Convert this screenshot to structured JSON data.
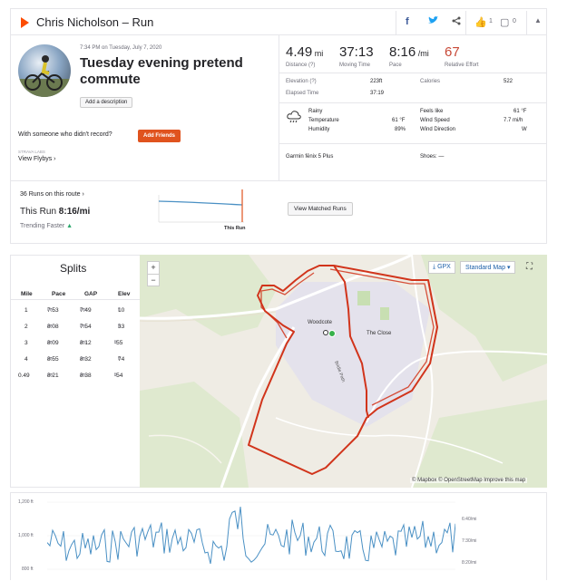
{
  "header": {
    "title": "Chris Nicholson – Run",
    "kudos_count": "1",
    "comments_count": "0"
  },
  "activity": {
    "timestamp": "7:34 PM on Tuesday, July 7, 2020",
    "title": "Tuesday evening pretend commute",
    "add_description": "Add a description",
    "with_someone": "With someone who didn't record?",
    "add_friends": "Add Friends",
    "strava_labs": "STRAVA LABS",
    "view_flybys": "View Flybys"
  },
  "stats": {
    "distance": "4.49",
    "distance_unit": "mi",
    "distance_label": "Distance (?)",
    "moving_time": "37:13",
    "moving_time_label": "Moving Time",
    "pace": "8:16",
    "pace_unit": "/mi",
    "pace_label": "Pace",
    "relative_effort": "67",
    "relative_effort_label": "Relative Effort",
    "elevation_label": "Elevation (?)",
    "elevation": "223ft",
    "calories_label": "Calories",
    "calories": "522",
    "elapsed_label": "Elapsed Time",
    "elapsed": "37:19",
    "weather": {
      "condition": "Rainy",
      "temperature_label": "Temperature",
      "temperature": "61 °F",
      "humidity_label": "Humidity",
      "humidity": "89%",
      "feels_like_label": "Feels like",
      "feels_like": "61 °F",
      "wind_speed_label": "Wind Speed",
      "wind_speed": "7.7 mi/h",
      "wind_dir_label": "Wind Direction",
      "wind_dir": "W"
    },
    "device": "Garmin fēnix 5 Plus",
    "shoes": "Shoes: —"
  },
  "route": {
    "runs_on_route": "36 Runs on this route",
    "this_run_label": "This Run",
    "this_run_pace": "8:16/mi",
    "trending": "Trending Faster",
    "this_run_marker": "This Run",
    "view_matched": "View Matched Runs"
  },
  "splits": {
    "title": "Splits",
    "headers": [
      "Mile",
      "Pace",
      "GAP",
      "Elev"
    ],
    "rows": [
      {
        "mile": "1",
        "pace": "7:53",
        "gap": "7:49",
        "elev": "10"
      },
      {
        "mile": "2",
        "pace": "8:08",
        "gap": "7:54",
        "elev": "33"
      },
      {
        "mile": "3",
        "pace": "8:09",
        "gap": "8:12",
        "elev": "-55"
      },
      {
        "mile": "4",
        "pace": "8:55",
        "gap": "8:32",
        "elev": "74"
      },
      {
        "mile": "0.49",
        "pace": "8:21",
        "gap": "8:38",
        "elev": "-54"
      }
    ],
    "pace_unit": "/mi",
    "elev_unit": "ft"
  },
  "map": {
    "zoom_in": "+",
    "zoom_out": "−",
    "gpx": "GPX",
    "style": "Standard Map",
    "labels": [
      "Woodcote",
      "The Close",
      "Bridle Path"
    ],
    "attribution": "© Mapbox © OpenStreetMap Improve this map",
    "route_color": "#d1341b"
  },
  "profile": {
    "y_left": [
      "1,200 ft",
      "1,000 ft",
      "800 ft"
    ],
    "y_right": [
      "6:40/mi",
      "7:30/mi",
      "8:20/mi"
    ]
  },
  "colors": {
    "brand": "#fc4c02",
    "accent_blue": "#4a90c4"
  }
}
